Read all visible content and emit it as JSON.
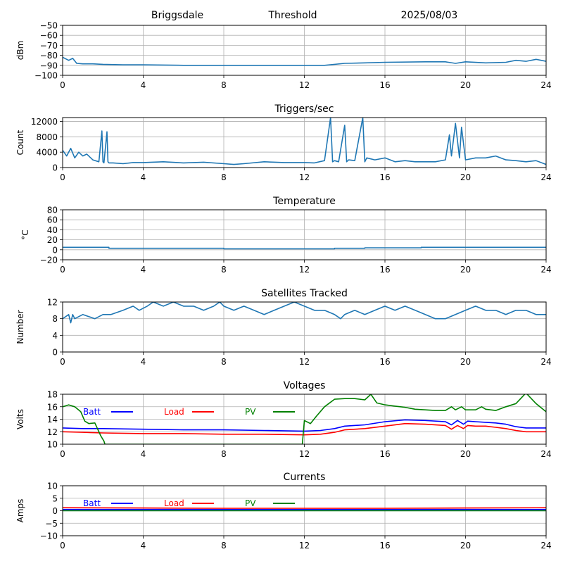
{
  "header": {
    "station": "Briggsdale",
    "mode": "Threshold",
    "date": "2025/08/03"
  },
  "chart_data": [
    {
      "id": "noise",
      "type": "line",
      "title": "",
      "xlabel": "",
      "ylabel": "dBm",
      "xlim": [
        0,
        24
      ],
      "ylim": [
        -100,
        -50
      ],
      "xticks": [
        0,
        4,
        8,
        12,
        16,
        20,
        24
      ],
      "yticks": [
        -100,
        -90,
        -80,
        -70,
        -60,
        -50
      ],
      "grid": true,
      "color": "#1f77b4",
      "series": [
        {
          "x": [
            0,
            0.3,
            0.5,
            0.7,
            1,
            1.5,
            2,
            3,
            4,
            6,
            8,
            10,
            12,
            13,
            14,
            15,
            16,
            18,
            19,
            19.5,
            20,
            21,
            22,
            22.5,
            23,
            23.5,
            24
          ],
          "y": [
            -82,
            -85,
            -83,
            -88,
            -88.5,
            -88.5,
            -89,
            -89.5,
            -89.5,
            -90,
            -90,
            -90,
            -90,
            -90,
            -88,
            -87.5,
            -87,
            -86.5,
            -86.5,
            -88,
            -86.5,
            -87.5,
            -87,
            -85,
            -86,
            -84,
            -86
          ]
        }
      ]
    },
    {
      "id": "triggers",
      "type": "line",
      "title": "Triggers/sec",
      "xlabel": "",
      "ylabel": "Count",
      "xlim": [
        0,
        24
      ],
      "ylim": [
        0,
        13000
      ],
      "xticks": [
        0,
        4,
        8,
        12,
        16,
        20,
        24
      ],
      "yticks": [
        0,
        4000,
        8000,
        12000
      ],
      "grid": true,
      "color": "#1f77b4",
      "series": [
        {
          "x": [
            0,
            0.2,
            0.4,
            0.6,
            0.8,
            1.0,
            1.2,
            1.5,
            1.8,
            1.95,
            2.0,
            2.05,
            2.2,
            2.25,
            2.3,
            2.5,
            3,
            3.5,
            4,
            5,
            6,
            7,
            8,
            8.5,
            9,
            10,
            11,
            12,
            12.5,
            13,
            13.3,
            13.4,
            13.5,
            13.7,
            14,
            14.1,
            14.2,
            14.5,
            14.9,
            15.0,
            15.1,
            15.5,
            16,
            16.5,
            17,
            17.5,
            18,
            18.5,
            19,
            19.2,
            19.3,
            19.5,
            19.7,
            19.8,
            20,
            20.5,
            21,
            21.5,
            22,
            22.5,
            23,
            23.5,
            24
          ],
          "y": [
            4500,
            3000,
            5000,
            2500,
            4000,
            3000,
            3500,
            2000,
            1500,
            9500,
            1500,
            1200,
            9300,
            1500,
            1200,
            1200,
            1000,
            1300,
            1300,
            1500,
            1200,
            1400,
            1000,
            800,
            1000,
            1500,
            1300,
            1300,
            1200,
            1800,
            13000,
            1500,
            1800,
            1500,
            11000,
            1500,
            2000,
            1800,
            13000,
            1500,
            2500,
            2000,
            2500,
            1500,
            1800,
            1500,
            1500,
            1500,
            2000,
            8500,
            3000,
            11500,
            2500,
            10500,
            2000,
            2500,
            2500,
            3000,
            2000,
            1800,
            1500,
            1800,
            800
          ]
        }
      ]
    },
    {
      "id": "temperature",
      "type": "line",
      "title": "Temperature",
      "xlabel": "",
      "ylabel": "°C",
      "xlim": [
        0,
        24
      ],
      "ylim": [
        -20,
        80
      ],
      "xticks": [
        0,
        4,
        8,
        12,
        16,
        20,
        24
      ],
      "yticks": [
        -20,
        0,
        20,
        40,
        60,
        80
      ],
      "grid": true,
      "color": "#1f77b4",
      "series": [
        {
          "x": [
            0,
            2.3,
            2.3,
            8,
            8,
            13.5,
            13.5,
            15,
            15,
            17.8,
            17.8,
            24
          ],
          "y": [
            5,
            5,
            3,
            3,
            2,
            2,
            3,
            3,
            4,
            4,
            5,
            5
          ]
        }
      ]
    },
    {
      "id": "satellites",
      "type": "line",
      "title": "Satellites Tracked",
      "xlabel": "",
      "ylabel": "Number",
      "xlim": [
        0,
        24
      ],
      "ylim": [
        0,
        12
      ],
      "xticks": [
        0,
        4,
        8,
        12,
        16,
        20,
        24
      ],
      "yticks": [
        0,
        4,
        8,
        12
      ],
      "grid": true,
      "color": "#1f77b4",
      "series": [
        {
          "x": [
            0,
            0.3,
            0.4,
            0.5,
            0.6,
            1,
            1.6,
            2,
            2.4,
            3,
            3.5,
            3.8,
            4.2,
            4.5,
            5,
            5.5,
            6,
            6.5,
            7,
            7.5,
            7.8,
            8,
            8.5,
            9,
            9.5,
            10,
            10.5,
            11,
            11.5,
            12,
            12.5,
            13,
            13.5,
            13.8,
            14,
            14.5,
            15,
            15.5,
            16,
            16.5,
            17,
            17.5,
            18,
            18.5,
            19,
            19.5,
            20,
            20.5,
            21,
            21.5,
            22,
            22.5,
            23,
            23.5,
            24
          ],
          "y": [
            8,
            9,
            7,
            9,
            8,
            9,
            8,
            9,
            9,
            10,
            11,
            10,
            11,
            12,
            11,
            12,
            11,
            11,
            10,
            11,
            12,
            11,
            10,
            11,
            10,
            9,
            10,
            11,
            12,
            11,
            10,
            10,
            9,
            8,
            9,
            10,
            9,
            10,
            11,
            10,
            11,
            10,
            9,
            8,
            8,
            9,
            10,
            11,
            10,
            10,
            9,
            10,
            10,
            9,
            9
          ]
        }
      ]
    },
    {
      "id": "voltages",
      "type": "line",
      "title": "Voltages",
      "xlabel": "",
      "ylabel": "Volts",
      "xlim": [
        0,
        24
      ],
      "ylim": [
        10,
        18
      ],
      "xticks": [
        0,
        4,
        8,
        12,
        16,
        20,
        24
      ],
      "yticks": [
        10,
        12,
        14,
        16,
        18
      ],
      "grid": true,
      "legend": "top-left, horizontal",
      "series": [
        {
          "name": "Batt",
          "color": "#0000ff",
          "x": [
            0,
            1,
            2,
            4,
            6,
            8,
            10,
            12,
            12.8,
            13.5,
            14,
            15,
            16,
            17,
            18,
            19,
            19.3,
            19.6,
            19.9,
            20.1,
            20.5,
            21,
            21.5,
            22,
            22.5,
            23,
            23.5,
            24
          ],
          "y": [
            12.6,
            12.5,
            12.5,
            12.4,
            12.3,
            12.3,
            12.2,
            12.1,
            12.2,
            12.5,
            12.9,
            13.1,
            13.6,
            13.9,
            13.8,
            13.6,
            13.1,
            13.8,
            13.2,
            13.7,
            13.6,
            13.5,
            13.4,
            13.2,
            12.8,
            12.6,
            12.6,
            12.6
          ]
        },
        {
          "name": "Load",
          "color": "#ff0000",
          "x": [
            0,
            1,
            2,
            4,
            6,
            8,
            10,
            12,
            12.8,
            13.5,
            14,
            15,
            16,
            17,
            18,
            19,
            19.3,
            19.6,
            19.9,
            20.1,
            20.5,
            21,
            21.5,
            22,
            22.5,
            23,
            23.5,
            24
          ],
          "y": [
            12.0,
            11.9,
            11.8,
            11.7,
            11.7,
            11.6,
            11.6,
            11.5,
            11.6,
            11.9,
            12.3,
            12.5,
            12.9,
            13.3,
            13.2,
            13.0,
            12.4,
            13.0,
            12.5,
            13.0,
            12.9,
            12.9,
            12.7,
            12.5,
            12.2,
            12.0,
            12.0,
            12.0
          ]
        },
        {
          "name": "PV",
          "color": "#008000",
          "x": [
            0,
            0.3,
            0.6,
            0.9,
            1.1,
            1.3,
            1.6,
            1.8,
            1.9,
            2.05,
            2.1,
            11.9,
            12.0,
            12.3,
            12.6,
            13.0,
            13.5,
            14,
            14.5,
            15,
            15.3,
            15.6,
            16,
            16.5,
            17,
            17.5,
            18,
            18.5,
            19,
            19.3,
            19.5,
            19.8,
            20,
            20.5,
            20.8,
            21,
            21.5,
            22,
            22.5,
            23,
            23.5,
            24
          ],
          "y": [
            16.0,
            16.3,
            16.0,
            15.2,
            13.7,
            13.3,
            13.4,
            12.0,
            11.3,
            10.5,
            10.0,
            10.0,
            13.8,
            13.3,
            14.5,
            16.0,
            17.2,
            17.3,
            17.3,
            17.1,
            18.0,
            16.6,
            16.3,
            16.1,
            15.9,
            15.6,
            15.5,
            15.4,
            15.4,
            16.0,
            15.5,
            16.0,
            15.5,
            15.5,
            16.0,
            15.6,
            15.4,
            16.0,
            16.5,
            18.2,
            16.5,
            15.2
          ]
        }
      ]
    },
    {
      "id": "currents",
      "type": "line",
      "title": "Currents",
      "xlabel": "",
      "ylabel": "Amps",
      "xlim": [
        0,
        24
      ],
      "ylim": [
        -10,
        10
      ],
      "xticks": [
        0,
        4,
        8,
        12,
        16,
        20,
        24
      ],
      "yticks": [
        -10,
        -5,
        0,
        5,
        10
      ],
      "grid": true,
      "legend": "top-left, horizontal",
      "series": [
        {
          "name": "Batt",
          "color": "#0000ff",
          "x": [
            0,
            24
          ],
          "y": [
            0.5,
            0.5
          ]
        },
        {
          "name": "Load",
          "color": "#ff0000",
          "x": [
            0,
            4,
            8,
            12,
            16,
            20,
            24
          ],
          "y": [
            1.2,
            1.1,
            1.0,
            1.0,
            1.0,
            1.1,
            1.2
          ]
        },
        {
          "name": "PV",
          "color": "#008000",
          "x": [
            0,
            24
          ],
          "y": [
            0,
            0
          ]
        }
      ]
    }
  ]
}
